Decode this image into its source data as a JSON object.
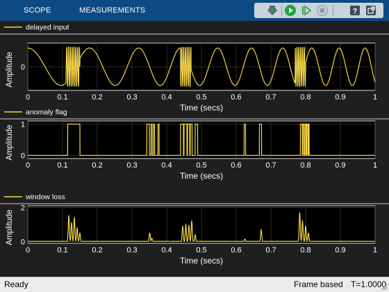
{
  "toolbar": {
    "tabs": [
      {
        "label": "SCOPE"
      },
      {
        "label": "MEASUREMENTS"
      }
    ],
    "tools": [
      {
        "icon": "signal-select-icon"
      },
      {
        "icon": "run-icon"
      },
      {
        "icon": "step-forward-icon"
      },
      {
        "icon": "stop-icon"
      },
      {
        "icon": "help-icon"
      },
      {
        "icon": "undock-icon"
      }
    ]
  },
  "status": {
    "left": "Ready",
    "mode": "Frame based",
    "time": "T=1.0000"
  },
  "colors": {
    "trace": "#f5d74a",
    "plot_bg": "#000000",
    "panel_bg": "#1f1f1f",
    "grid": "#3a3a3a",
    "text": "#ffffff",
    "toolbar": "#0d4a83",
    "run_green": "#1fa33a"
  },
  "chart_data": [
    {
      "type": "line",
      "legend": [
        "delayed input"
      ],
      "xlabel": "Time (secs)",
      "ylabel": "Amplitude",
      "xlim": [
        0,
        1
      ],
      "ylim": [
        -1.2,
        1.2
      ],
      "xticks": [
        "0",
        "0.1",
        "0.2",
        "0.3",
        "0.4",
        "0.5",
        "0.6",
        "0.7",
        "0.8",
        "0.9",
        "1"
      ],
      "yticks": [
        "0"
      ],
      "grid": true,
      "signal": "sinusoid with varying frequency; high-frequency bursts near 0.11-0.15 s, 0.44-0.47 s and 0.77-0.80 s",
      "bursts": [
        [
          0.11,
          0.15
        ],
        [
          0.44,
          0.47
        ],
        [
          0.77,
          0.8
        ]
      ]
    },
    {
      "type": "line",
      "legend": [
        "anomaly flag"
      ],
      "xlabel": "Time (secs)",
      "ylabel": "Amplitude",
      "xlim": [
        0,
        1
      ],
      "ylim": [
        -0.1,
        1.1
      ],
      "xticks": [
        "0",
        "0.1",
        "0.2",
        "0.3",
        "0.4",
        "0.5",
        "0.6",
        "0.7",
        "0.8",
        "0.9",
        "1"
      ],
      "yticks": [
        "0",
        "1"
      ],
      "grid": true,
      "high_intervals": [
        [
          0.115,
          0.15
        ],
        [
          0.343,
          0.35
        ],
        [
          0.355,
          0.358
        ],
        [
          0.362,
          0.365
        ],
        [
          0.375,
          0.378
        ],
        [
          0.44,
          0.448
        ],
        [
          0.45,
          0.458
        ],
        [
          0.46,
          0.466
        ],
        [
          0.468,
          0.473
        ],
        [
          0.482,
          0.489
        ],
        [
          0.623,
          0.627
        ],
        [
          0.667,
          0.673
        ],
        [
          0.785,
          0.79
        ],
        [
          0.792,
          0.795
        ],
        [
          0.798,
          0.801
        ],
        [
          0.803,
          0.806
        ],
        [
          0.808,
          0.81
        ]
      ]
    },
    {
      "type": "line",
      "legend": [
        "window loss"
      ],
      "xlabel": "Time (secs)",
      "ylabel": "Amplitude",
      "xlim": [
        0,
        1
      ],
      "ylim": [
        -0.1,
        2.1
      ],
      "xticks": [
        "0",
        "0.1",
        "0.2",
        "0.3",
        "0.4",
        "0.5",
        "0.6",
        "0.7",
        "0.8",
        "0.9",
        "1"
      ],
      "yticks": [
        "0",
        "2"
      ],
      "grid": true,
      "baseline": 0.02,
      "peaks": [
        {
          "x": 0.118,
          "y": 1.5
        },
        {
          "x": 0.126,
          "y": 1.1
        },
        {
          "x": 0.134,
          "y": 1.4
        },
        {
          "x": 0.142,
          "y": 0.8
        },
        {
          "x": 0.15,
          "y": 0.5
        },
        {
          "x": 0.351,
          "y": 0.5
        },
        {
          "x": 0.357,
          "y": 0.2
        },
        {
          "x": 0.446,
          "y": 0.9
        },
        {
          "x": 0.455,
          "y": 1.0
        },
        {
          "x": 0.464,
          "y": 0.95
        },
        {
          "x": 0.472,
          "y": 1.2
        },
        {
          "x": 0.482,
          "y": 0.4
        },
        {
          "x": 0.625,
          "y": 0.15
        },
        {
          "x": 0.672,
          "y": 0.7
        },
        {
          "x": 0.783,
          "y": 1.7
        },
        {
          "x": 0.791,
          "y": 1.2
        },
        {
          "x": 0.8,
          "y": 0.9
        },
        {
          "x": 0.808,
          "y": 0.5
        }
      ]
    }
  ]
}
